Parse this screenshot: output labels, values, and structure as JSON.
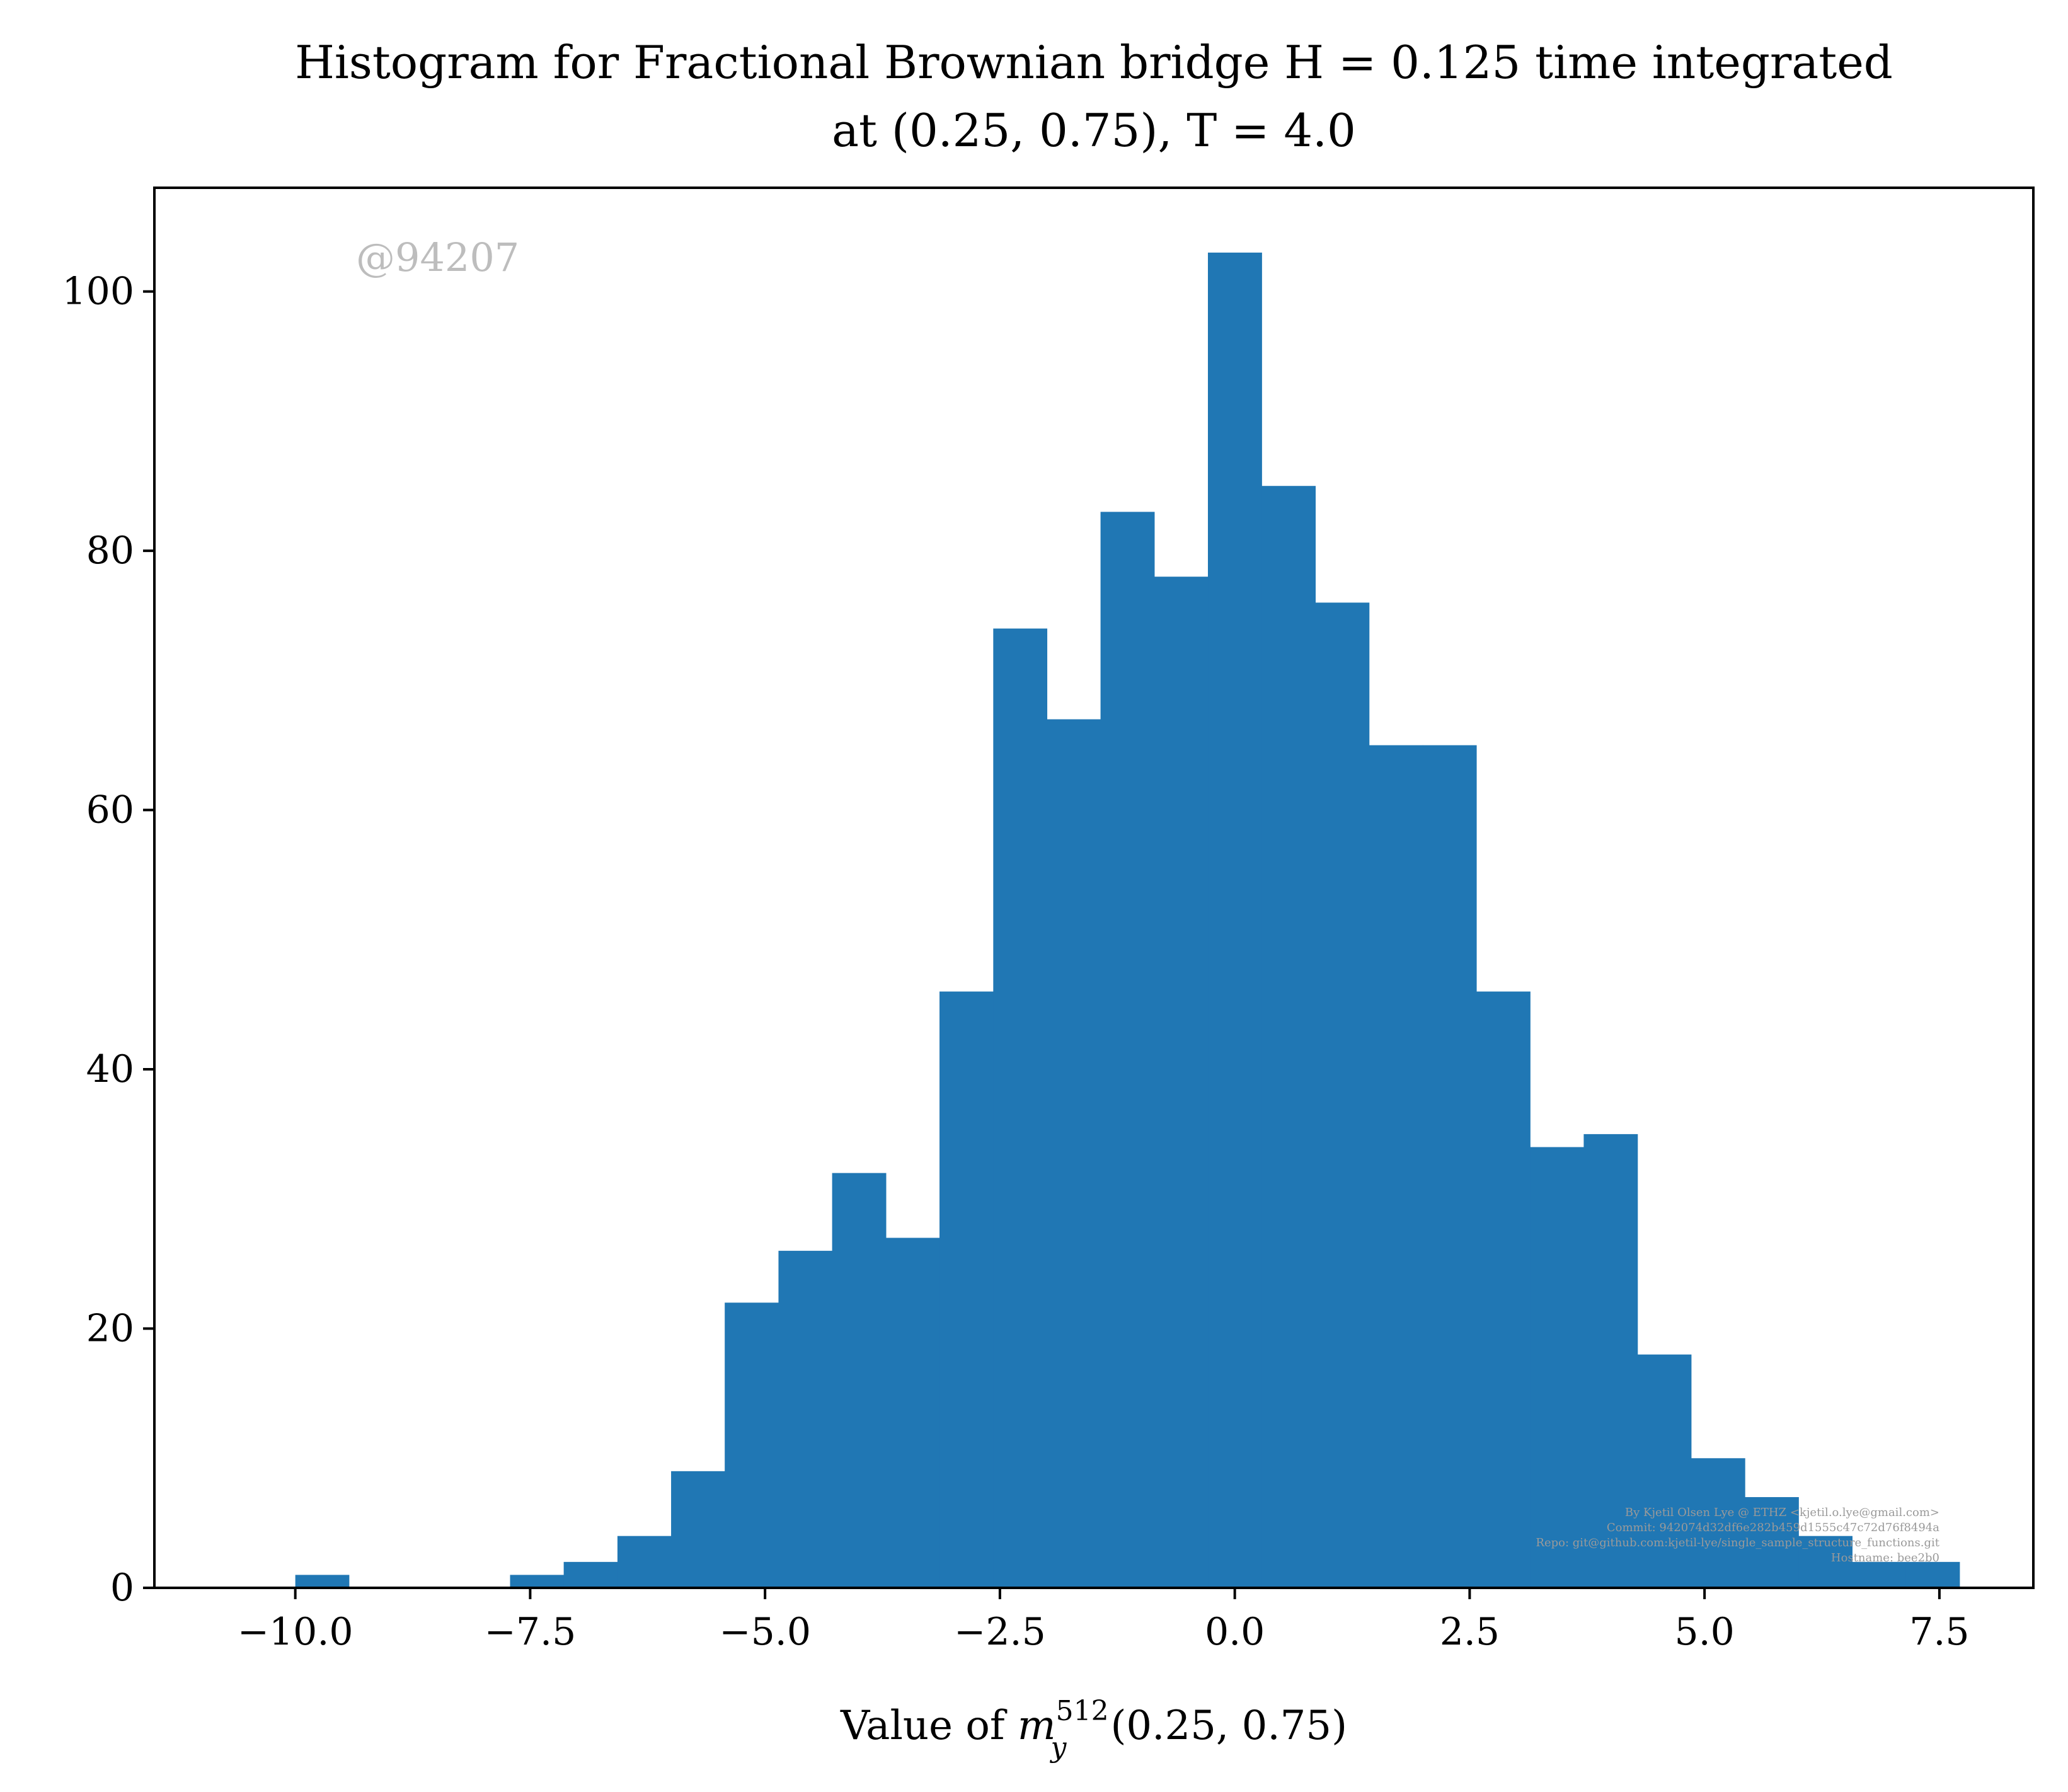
{
  "chart_data": {
    "type": "bar",
    "title_line1": "Histogram for Fractional Brownian bridge H = 0.125 time integrated",
    "title_line2": "at (0.25, 0.75), T = 4.0",
    "xlabel": "Value of m_y^512(0.25, 0.75)",
    "ylabel": "",
    "xlim": [
      -11.5,
      8.5
    ],
    "ylim": [
      0,
      108
    ],
    "grid": false,
    "bar_color": "#2077b4",
    "bin_edges": [
      -10.0,
      -9.429,
      -8.857,
      -8.286,
      -7.714,
      -7.143,
      -6.571,
      -6.0,
      -5.429,
      -4.857,
      -4.286,
      -3.714,
      -3.143,
      -2.571,
      -2.0,
      -1.429,
      -0.857,
      -0.286,
      0.286,
      0.857,
      1.429,
      2.0,
      2.571,
      3.143,
      3.714,
      4.286,
      4.857,
      5.429,
      6.0,
      6.571,
      7.143,
      7.714
    ],
    "counts": [
      1,
      0,
      0,
      0,
      1,
      2,
      4,
      9,
      22,
      26,
      32,
      27,
      46,
      74,
      67,
      83,
      78,
      103,
      85,
      76,
      65,
      65,
      46,
      34,
      35,
      18,
      10,
      7,
      4,
      2,
      2
    ],
    "xticks": [
      -10.0,
      -7.5,
      -5.0,
      -2.5,
      0.0,
      2.5,
      5.0,
      7.5
    ],
    "xtick_labels": [
      "−10.0",
      "−7.5",
      "−5.0",
      "−2.5",
      "0.0",
      "2.5",
      "5.0",
      "7.5"
    ],
    "yticks": [
      0,
      20,
      40,
      60,
      80,
      100
    ],
    "ytick_labels": [
      "0",
      "20",
      "40",
      "60",
      "80",
      "100"
    ]
  },
  "watermark": "@94207",
  "credits": [
    "By Kjetil Olsen Lye @ ETHZ <kjetil.o.lye@gmail.com>",
    "Commit: 942074d32df6e282b459d1555c47c72d76f8494a",
    "Repo: git@github.com:kjetil-lye/single_sample_structure_functions.git",
    "Hostname: bee2b0"
  ]
}
